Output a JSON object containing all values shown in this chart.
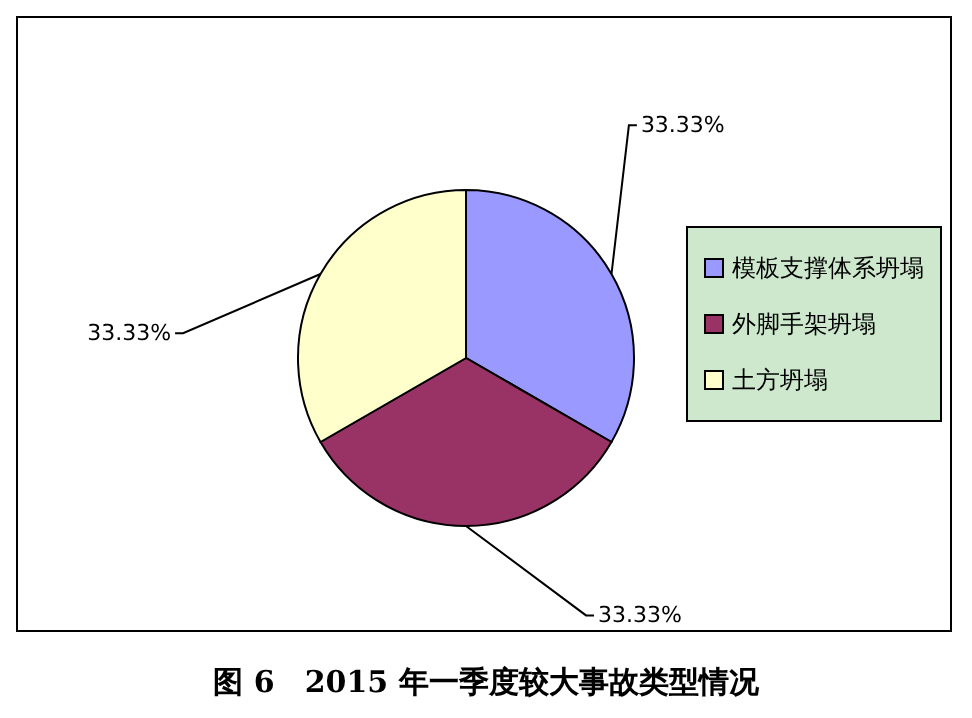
{
  "chart_data": {
    "type": "pie",
    "title": "图 6　2015 年一季度较大事故类型情况",
    "categories": [
      "模板支撑体系坍塌",
      "外脚手架坍塌",
      "土方坍塌"
    ],
    "values": [
      33.33,
      33.33,
      33.33
    ],
    "colors": [
      "#9999ff",
      "#993366",
      "#ffffcc"
    ],
    "value_labels": [
      "33.33%",
      "33.33%",
      "33.33%"
    ],
    "legend": "right"
  }
}
